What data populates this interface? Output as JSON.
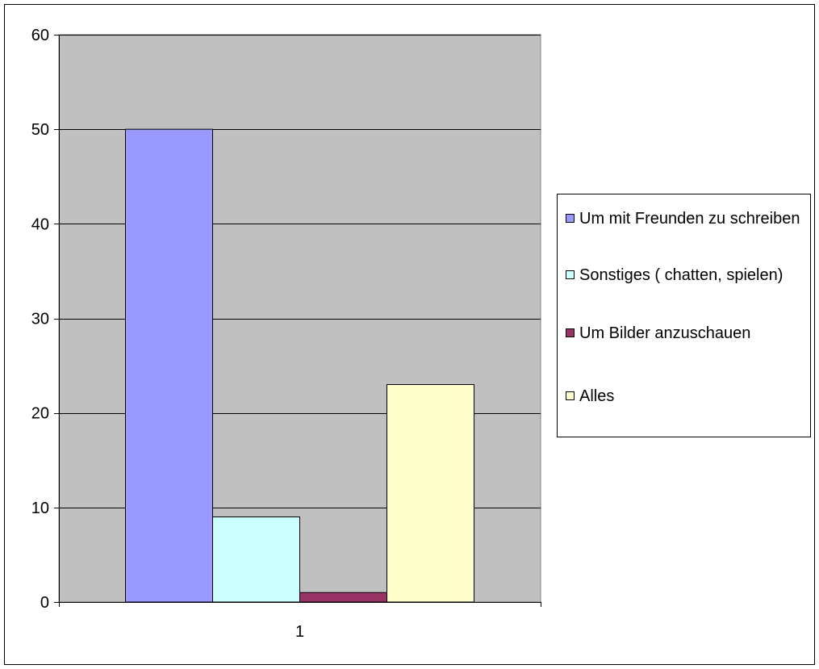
{
  "chart_data": {
    "type": "bar",
    "title": "",
    "xlabel": "",
    "ylabel": "",
    "categories": [
      "1"
    ],
    "ylim": [
      0,
      60
    ],
    "yticks": [
      0,
      10,
      20,
      30,
      40,
      50,
      60
    ],
    "grid": true,
    "legend_position": "right",
    "plot_background": "#c0c0c0",
    "series": [
      {
        "name": "Um mit Freunden zu schreiben",
        "values": [
          50
        ],
        "color": "#9999ff"
      },
      {
        "name": "Sonstiges ( chatten, spielen)",
        "values": [
          9
        ],
        "color": "#ccffff"
      },
      {
        "name": "Um Bilder anzuschauen",
        "values": [
          1
        ],
        "color": "#993366"
      },
      {
        "name": "Alles",
        "values": [
          23
        ],
        "color": "#ffffcc"
      }
    ]
  }
}
